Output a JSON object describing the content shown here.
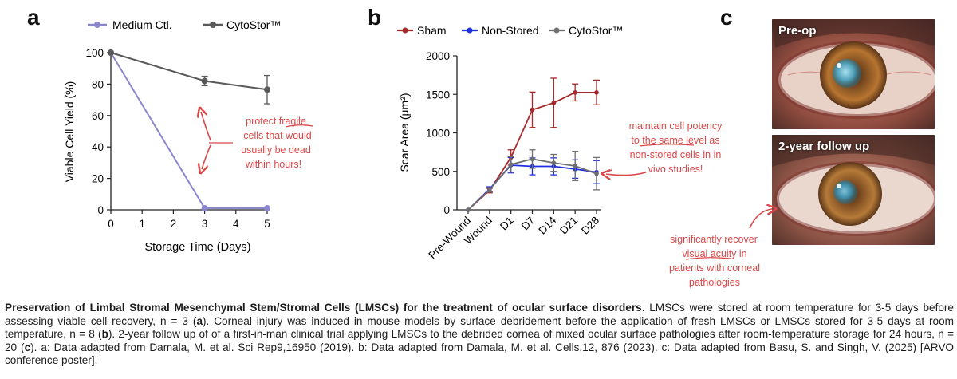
{
  "panels": {
    "a": "a",
    "b": "b",
    "c": "c"
  },
  "chart_data": [
    {
      "type": "line",
      "panel": "a",
      "x": [
        0,
        3,
        5
      ],
      "series": [
        {
          "name": "Medium Ctl.",
          "color": "#8b87cc",
          "values": [
            100,
            1,
            1
          ],
          "errors": [
            0,
            0,
            0
          ]
        },
        {
          "name": "CytoStor™",
          "color": "#595959",
          "values": [
            100,
            82,
            76.5
          ],
          "errors": [
            0,
            3,
            9
          ]
        }
      ],
      "xlabel": "Storage Time (Days)",
      "ylabel": "Viable Cell Yield (%)",
      "xlim": [
        0,
        5
      ],
      "ylim": [
        0,
        100
      ],
      "xticks": [
        "0",
        "1",
        "2",
        "3",
        "4",
        "5"
      ],
      "yticks": [
        "0",
        "20",
        "40",
        "60",
        "80",
        "100"
      ],
      "legend": "top",
      "annotation": [
        "protect fragile",
        "cells that would",
        "usually be dead",
        "within hours!"
      ],
      "annotation_color": "#d94848"
    },
    {
      "type": "line",
      "panel": "b",
      "categories": [
        "Pre-Wound",
        "Wound",
        "D1",
        "D7",
        "D14",
        "D21",
        "D28"
      ],
      "series": [
        {
          "name": "Sham",
          "color": "#a62929",
          "values": [
            0,
            250,
            680,
            1300,
            1390,
            1525,
            1525
          ],
          "errors": [
            0,
            30,
            100,
            230,
            320,
            110,
            160
          ]
        },
        {
          "name": "Non-Stored",
          "color": "#1f2fe0",
          "values": [
            0,
            270,
            580,
            565,
            565,
            530,
            490
          ],
          "errors": [
            0,
            30,
            100,
            110,
            110,
            120,
            150
          ]
        },
        {
          "name": "CytoStor™",
          "color": "#6e6e6e",
          "values": [
            0,
            260,
            590,
            660,
            610,
            570,
            470
          ],
          "errors": [
            0,
            30,
            100,
            120,
            110,
            190,
            210
          ]
        }
      ],
      "ylabel": "Scar Area (µm²)",
      "ylim": [
        0,
        2000
      ],
      "yticks": [
        "0",
        "500",
        "1000",
        "1500",
        "2000"
      ],
      "legend": "top",
      "annotation": [
        "maintain cell potency",
        "to the same level as",
        "non-stored cells in in",
        "vivo studies!"
      ],
      "annotation_color": "#d94848"
    }
  ],
  "photos": {
    "pre_op_label": "Pre-op",
    "followup_label": "2-year follow up",
    "annotation": [
      "significantly recover",
      "visual acuity in",
      "patients with corneal",
      "pathologies"
    ]
  },
  "caption": {
    "title": "Preservation of Limbal Stromal Mesenchymal Stem/Stromal Cells (LMSCs) for the treatment of ocular surface disorders",
    "p1": ". LMSCs were stored at room temperature for 3-5 days before assessing viable cell recovery, n = 3 (",
    "ref_a": "a",
    "p2": "). Corneal injury was induced in mouse models by surface debridement before the application of fresh LMSCs or LMSCs stored for 3-5 days at room temperature, n = 8 (",
    "ref_b": "b",
    "p3": "). 2-year follow up of of a first-in-man clinical trial applying LMSCs to the debrided cornea of mixed ocular surface pathologies after room-temperature storage for 24 hours, n = 20 (",
    "ref_c": "c",
    "p4": "). a: Data adapted from Damala, M. et al. Sci Rep9,16950 (2019). b: Data adapted from Damala, M. et al. Cells,12, 876 (2023). c: Data adapted from Basu, S. and Singh, V. (2025) [ARVO conference poster]."
  }
}
